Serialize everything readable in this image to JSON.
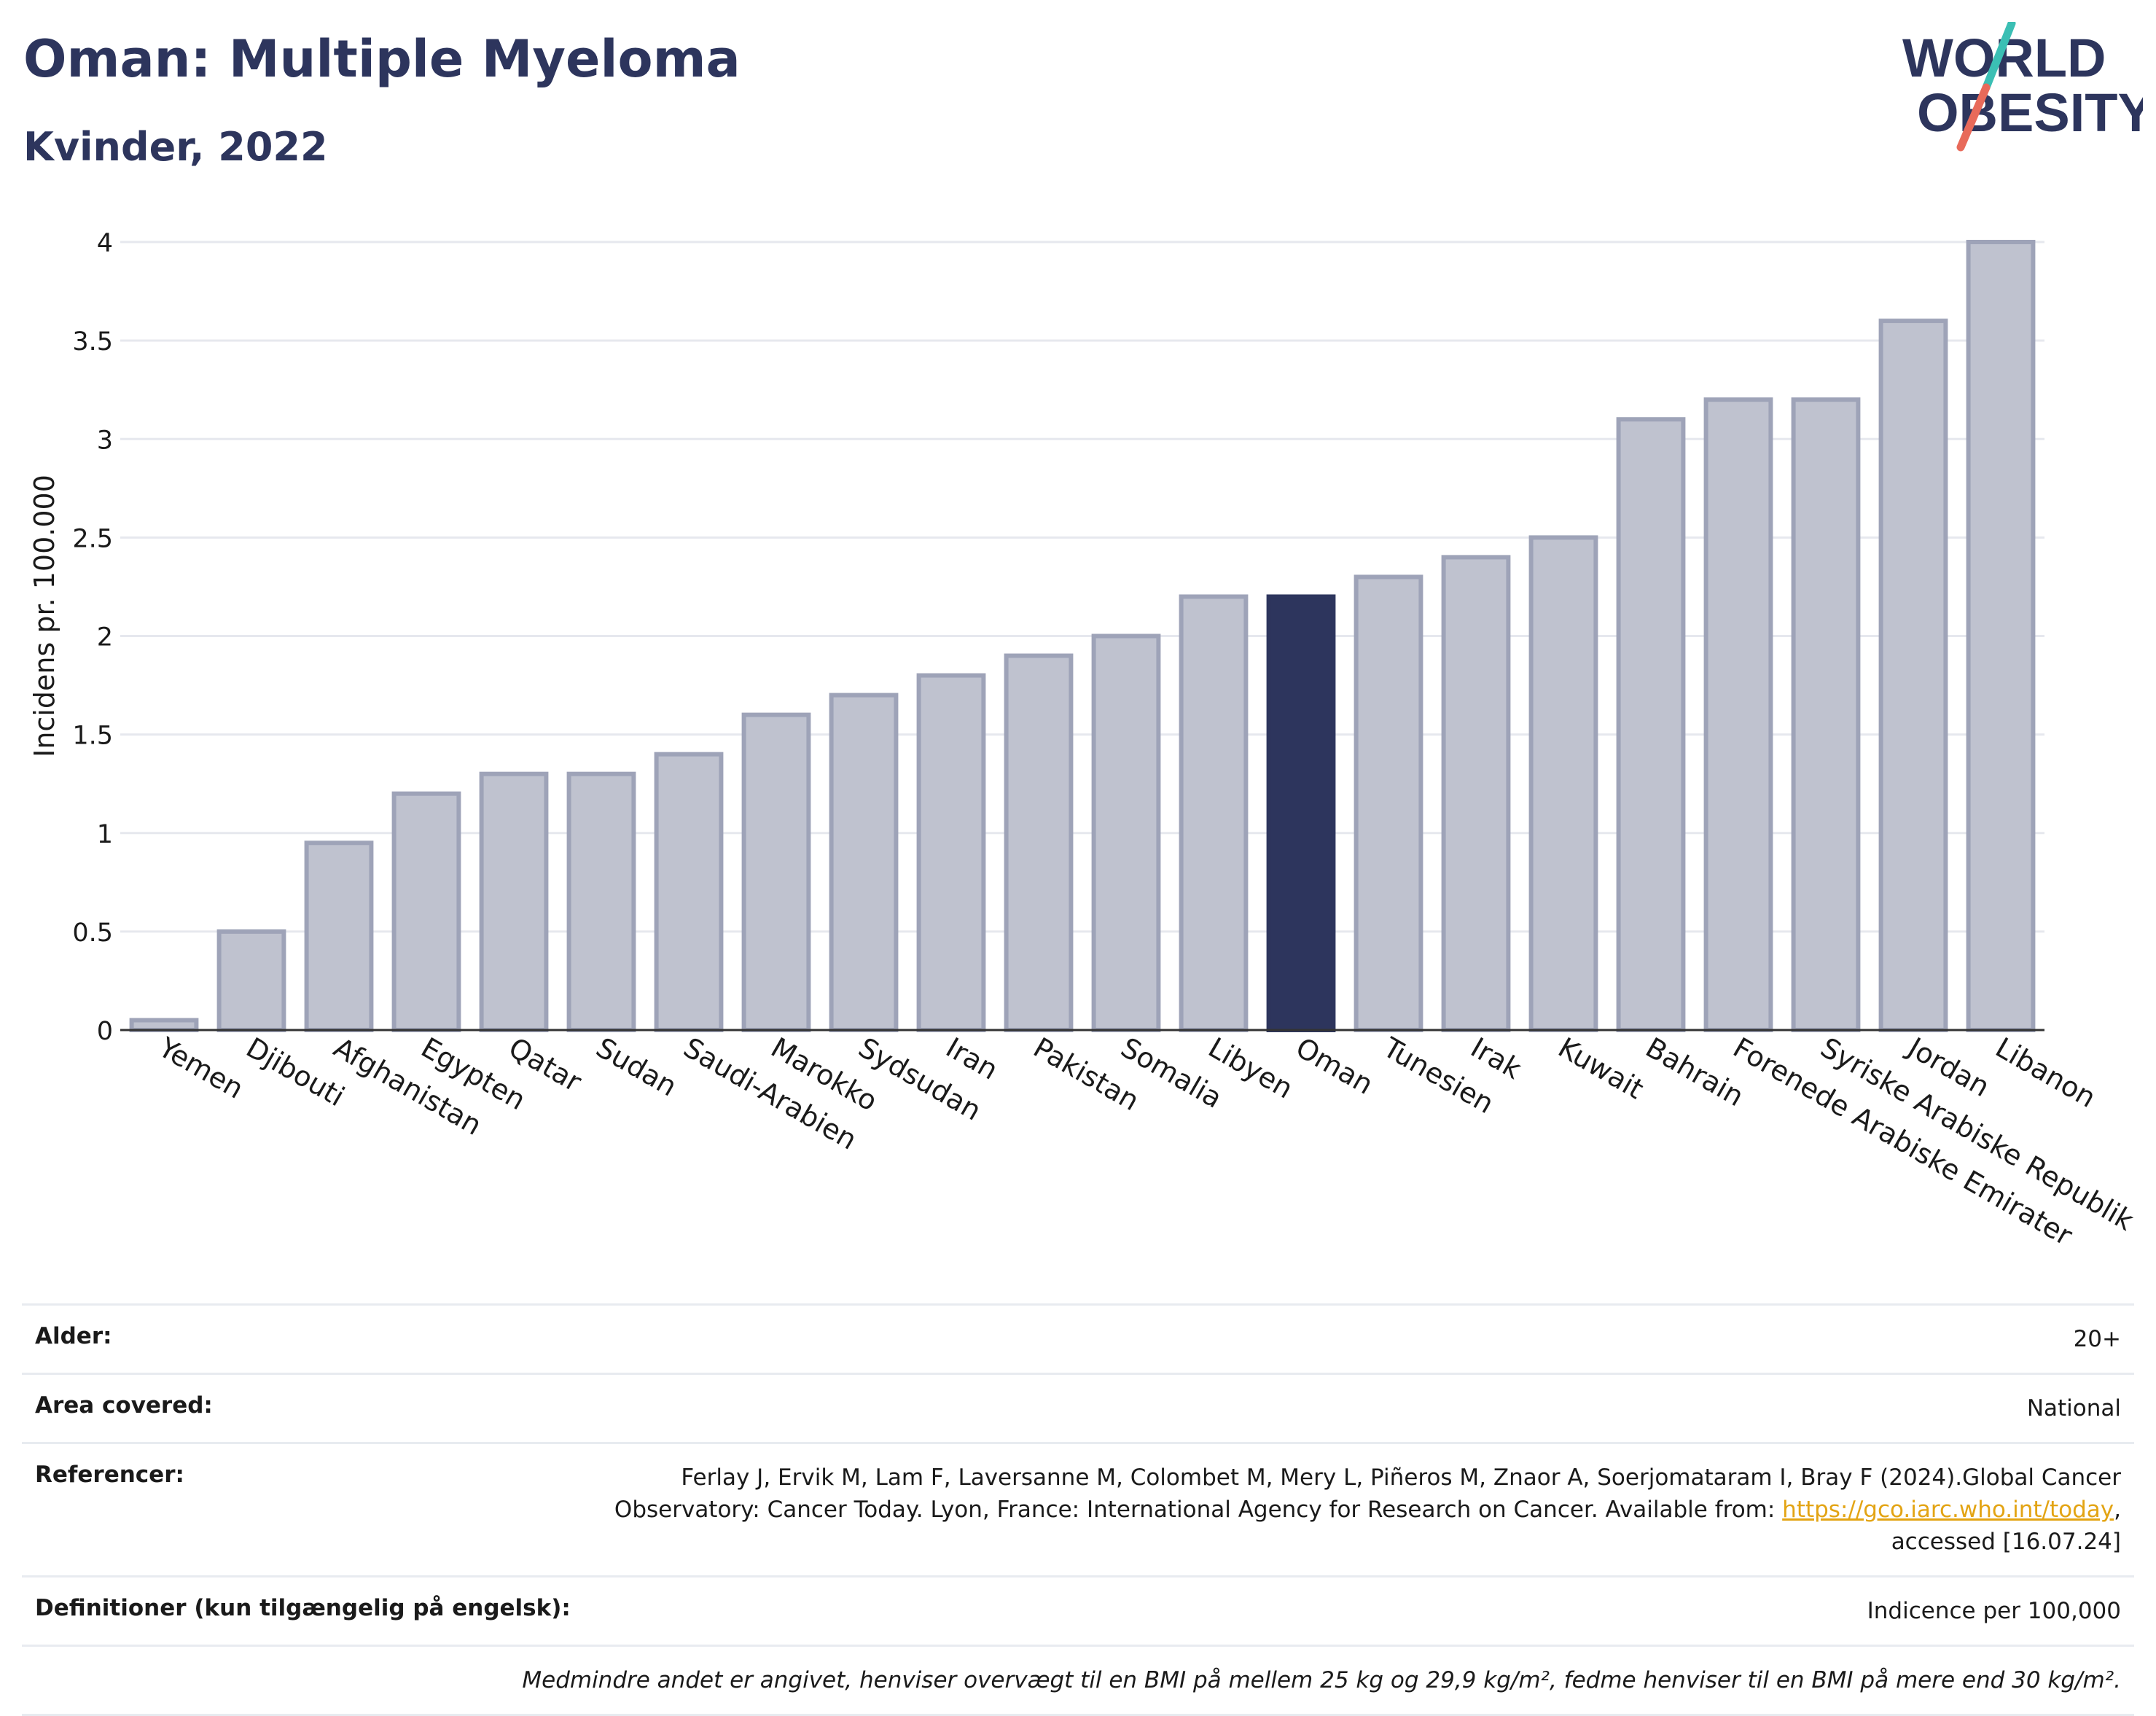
{
  "header": {
    "title": "Oman: Multiple Myeloma",
    "subtitle": "Kvinder, 2022"
  },
  "logo": {
    "line1": "WORLD",
    "line2": "OBESITY",
    "colors": {
      "text": "#2d355d",
      "slash_top": "#3bbfb4",
      "slash_bottom": "#e86a5a"
    }
  },
  "chart_data": {
    "type": "bar",
    "ylabel": "Incidens pr. 100.000",
    "xlabel": "",
    "ylim": [
      0,
      4
    ],
    "yticks": [
      0,
      0.5,
      1,
      1.5,
      2,
      2.5,
      3,
      3.5,
      4
    ],
    "ytick_labels": [
      "0",
      "0.5",
      "1",
      "1.5",
      "2",
      "2.5",
      "3",
      "3.5",
      "4"
    ],
    "grid": true,
    "highlight": "Oman",
    "colors": {
      "bar": "#bfc2cf",
      "bar_border": "#9ea3b8",
      "highlight": "#2d355d",
      "grid": "#e6e8ee",
      "axis": "#333333"
    },
    "categories": [
      "Yemen",
      "Djibouti",
      "Afghanistan",
      "Egypten",
      "Qatar",
      "Sudan",
      "Saudi-Arabien",
      "Marokko",
      "Sydsudan",
      "Iran",
      "Pakistan",
      "Somalia",
      "Libyen",
      "Oman",
      "Tunesien",
      "Irak",
      "Kuwait",
      "Bahrain",
      "Forenede Arabiske Emirater",
      "Syriske Arabiske Republik",
      "Jordan",
      "Libanon"
    ],
    "values": [
      0.05,
      0.5,
      0.95,
      1.2,
      1.3,
      1.3,
      1.4,
      1.6,
      1.7,
      1.8,
      1.9,
      2.0,
      2.2,
      2.2,
      2.3,
      2.4,
      2.5,
      3.1,
      3.2,
      3.2,
      3.6,
      4.0
    ]
  },
  "info": {
    "age_label": "Alder:",
    "age_value": "20+",
    "area_label": "Area covered:",
    "area_value": "National",
    "ref_label": "Referencer:",
    "ref_text_1": "Ferlay J, Ervik M, Lam F, Laversanne M, Colombet M, Mery L, Piñeros M, Znaor A, Soerjomataram I, Bray F (2024).Global Cancer Observatory: Cancer Today. Lyon, France: International Agency for Research on Cancer. Available from: ",
    "ref_link": "https://gco.iarc.who.int/today",
    "ref_text_2": ", accessed [16.07.24]",
    "def_label": "Definitioner (kun tilgængelig på engelsk):",
    "def_value": "Indicence per 100,000",
    "note": "Medmindre andet er angivet, henviser overvægt til en BMI på mellem 25 kg og 29,9 kg/m², fedme henviser til en BMI på mere end 30 kg/m²."
  }
}
